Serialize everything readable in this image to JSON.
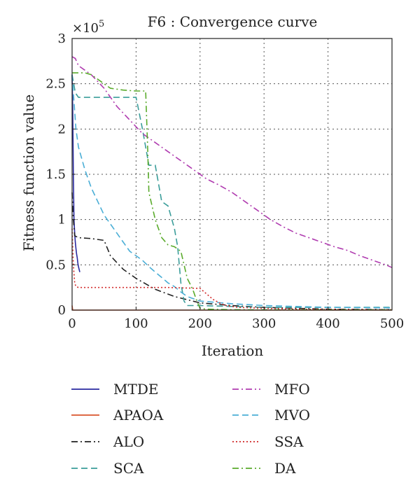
{
  "chart_data": {
    "type": "line",
    "title": "F6 : Convergence curve",
    "xlabel": "Iteration",
    "ylabel": "Fitness function value",
    "y_multiplier": "×10",
    "y_multiplier_exp": "5",
    "xlim": [
      0,
      500
    ],
    "ylim": [
      0,
      3
    ],
    "x_ticks": [
      "0",
      "100",
      "200",
      "300",
      "400",
      "500"
    ],
    "y_ticks": [
      "0",
      "0.5",
      "1",
      "1.5",
      "2",
      "2.5",
      "3"
    ],
    "grid": true,
    "legend_position": "bottom",
    "series": [
      {
        "name": "MTDE",
        "color": "#2a2aa0",
        "dash": "",
        "x": [
          0,
          1,
          2,
          3,
          4,
          5,
          6,
          7,
          8,
          9,
          10,
          12
        ],
        "y": [
          2.6,
          2.2,
          1.5,
          1.0,
          0.85,
          0.75,
          0.68,
          0.62,
          0.58,
          0.52,
          0.48,
          0.42
        ]
      },
      {
        "name": "APAOA",
        "color": "#d9542c",
        "dash": "",
        "x": [
          0,
          1,
          500
        ],
        "y": [
          0.05,
          0.0,
          0.0
        ]
      },
      {
        "name": "ALO",
        "color": "#222222",
        "dash": "9,4,2,4",
        "x": [
          0,
          2,
          4,
          10,
          30,
          50,
          60,
          80,
          100,
          130,
          160,
          200,
          250,
          300,
          350,
          400,
          500
        ],
        "y": [
          1.3,
          1.0,
          0.82,
          0.8,
          0.79,
          0.77,
          0.6,
          0.45,
          0.35,
          0.23,
          0.15,
          0.08,
          0.05,
          0.03,
          0.02,
          0.01,
          0.005
        ]
      },
      {
        "name": "SCA",
        "color": "#3a9d9a",
        "dash": "9,5",
        "x": [
          0,
          5,
          10,
          100,
          110,
          120,
          130,
          140,
          150,
          160,
          165,
          170,
          175,
          180,
          200,
          250,
          300,
          500
        ],
        "y": [
          2.6,
          2.4,
          2.35,
          2.35,
          2.0,
          1.6,
          1.6,
          1.2,
          1.15,
          0.9,
          0.7,
          0.3,
          0.1,
          0.05,
          0.05,
          0.04,
          0.03,
          0.03
        ]
      },
      {
        "name": "MFO",
        "color": "#b03cb0",
        "dash": "9,4,2,4",
        "x": [
          0,
          5,
          10,
          20,
          30,
          50,
          70,
          90,
          110,
          130,
          150,
          170,
          190,
          210,
          230,
          250,
          270,
          290,
          310,
          330,
          350,
          370,
          390,
          410,
          430,
          450,
          470,
          490,
          500
        ],
        "y": [
          2.8,
          2.78,
          2.7,
          2.65,
          2.6,
          2.45,
          2.25,
          2.1,
          1.95,
          1.85,
          1.75,
          1.65,
          1.55,
          1.45,
          1.38,
          1.3,
          1.2,
          1.1,
          1.0,
          0.92,
          0.85,
          0.8,
          0.75,
          0.7,
          0.66,
          0.6,
          0.55,
          0.5,
          0.47
        ]
      },
      {
        "name": "MVO",
        "color": "#4aaed6",
        "dash": "9,5",
        "x": [
          0,
          3,
          6,
          10,
          20,
          30,
          40,
          50,
          60,
          70,
          80,
          90,
          100,
          110,
          120,
          130,
          140,
          150,
          160,
          170,
          180,
          200,
          250,
          300,
          350,
          400,
          500
        ],
        "y": [
          2.6,
          2.3,
          2.0,
          1.8,
          1.55,
          1.35,
          1.2,
          1.05,
          0.95,
          0.85,
          0.75,
          0.65,
          0.6,
          0.55,
          0.48,
          0.42,
          0.36,
          0.3,
          0.26,
          0.2,
          0.15,
          0.1,
          0.07,
          0.05,
          0.04,
          0.03,
          0.025
        ]
      },
      {
        "name": "SSA",
        "color": "#d12a2a",
        "dash": "2,3",
        "x": [
          0,
          2,
          4,
          6,
          10,
          50,
          100,
          150,
          200,
          210,
          220,
          230,
          240,
          260,
          300,
          350,
          500
        ],
        "y": [
          0.9,
          0.5,
          0.3,
          0.26,
          0.25,
          0.25,
          0.25,
          0.25,
          0.24,
          0.18,
          0.12,
          0.08,
          0.05,
          0.03,
          0.02,
          0.01,
          0.005
        ]
      },
      {
        "name": "DA",
        "color": "#5aab2c",
        "dash": "9,4,2,4",
        "x": [
          0,
          20,
          30,
          40,
          50,
          60,
          80,
          100,
          115,
          118,
          120,
          130,
          140,
          150,
          160,
          170,
          180,
          185,
          190,
          195,
          200,
          210,
          250,
          300,
          500
        ],
        "y": [
          2.62,
          2.62,
          2.6,
          2.55,
          2.5,
          2.45,
          2.43,
          2.42,
          2.42,
          1.8,
          1.3,
          1.0,
          0.8,
          0.72,
          0.7,
          0.65,
          0.35,
          0.28,
          0.2,
          0.1,
          0.02,
          0.01,
          0.005,
          0.003,
          0.002
        ]
      }
    ]
  }
}
